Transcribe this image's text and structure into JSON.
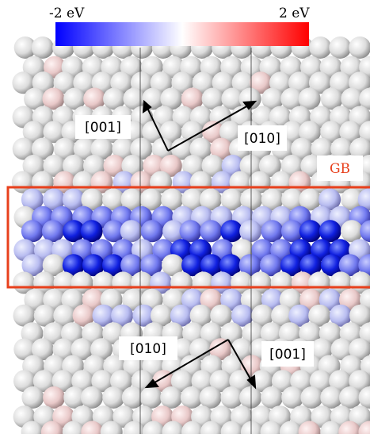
{
  "colorbar": {
    "min_label": "-2 eV",
    "max_label": "2 eV"
  },
  "labels": {
    "gb": "GB",
    "top": {
      "left": "[001]",
      "right": "[010]"
    },
    "bottom": {
      "left": "[010]",
      "right": "[001]"
    }
  }
}
